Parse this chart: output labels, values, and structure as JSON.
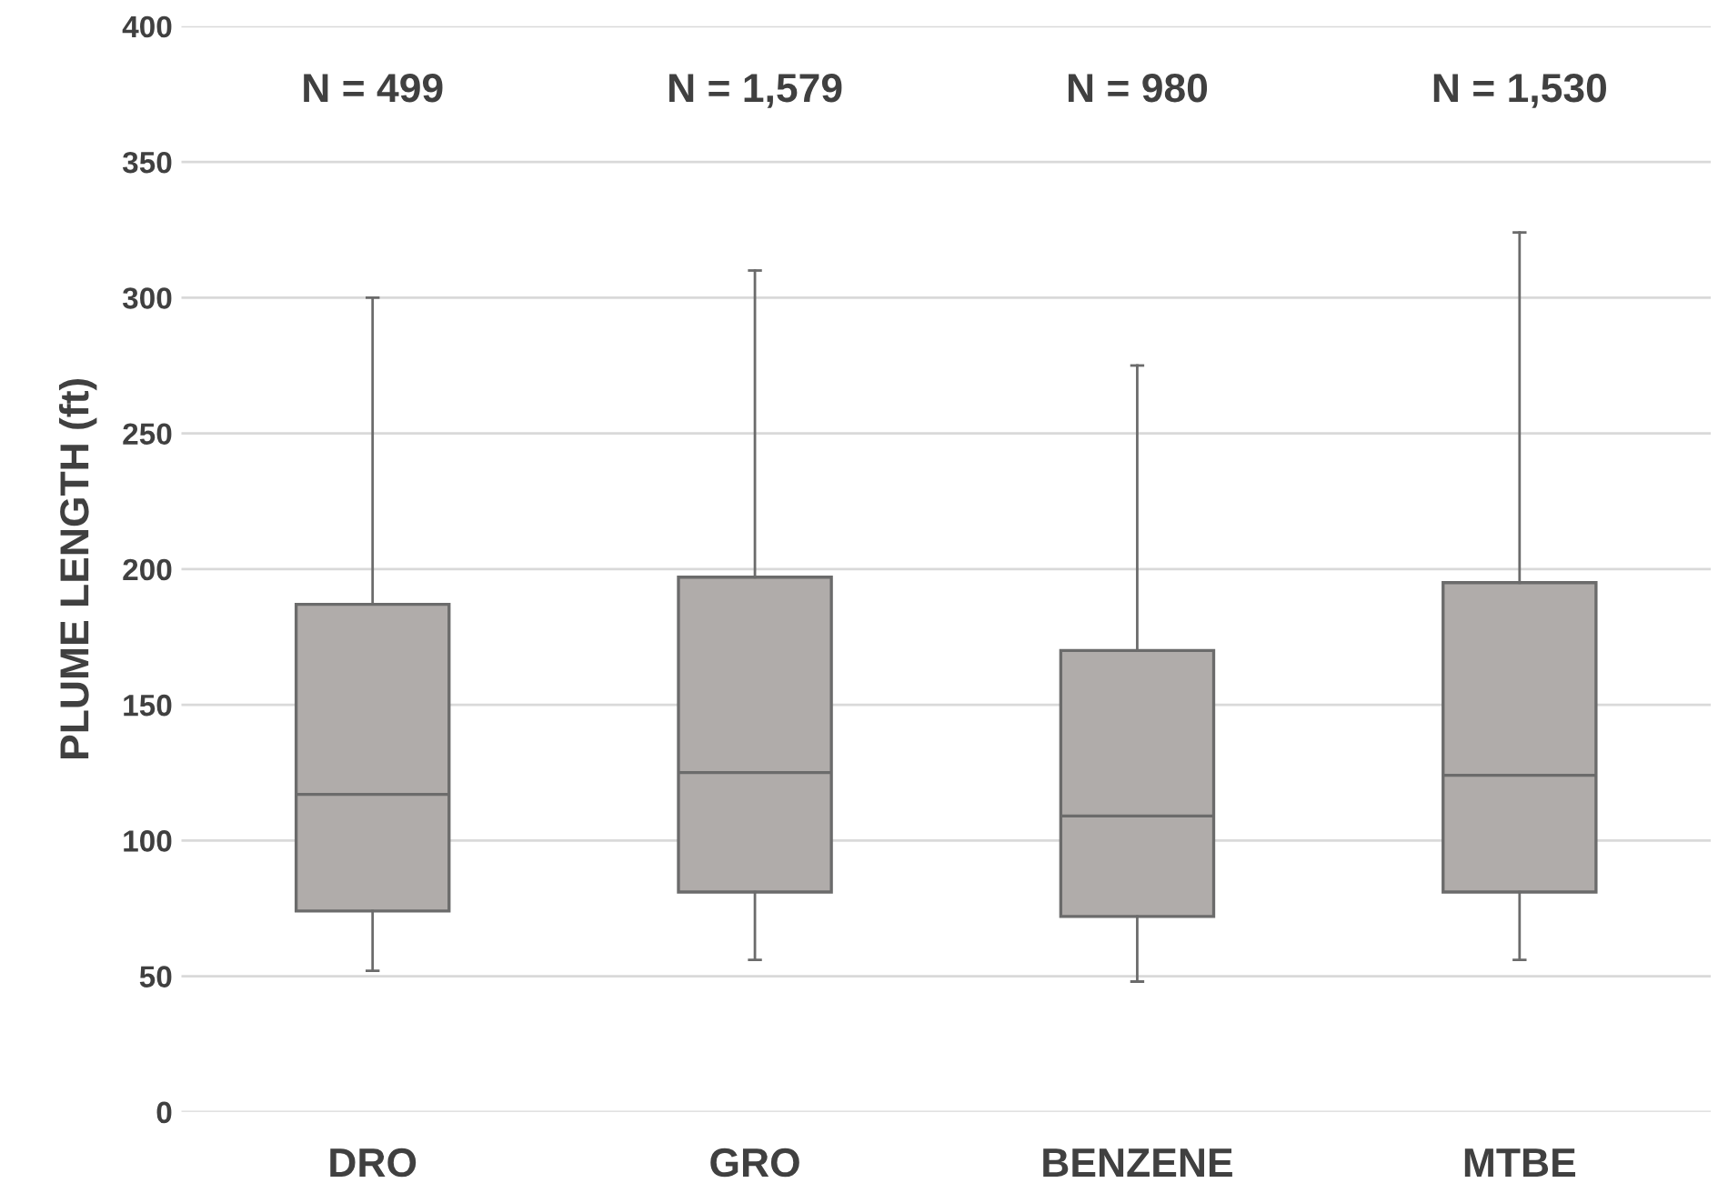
{
  "chart_data": {
    "type": "box",
    "ylabel": "PLUME LENGTH (ft)",
    "categories": [
      "DRO",
      "GRO",
      "BENZENE",
      "MTBE"
    ],
    "boxes": [
      {
        "low": 52,
        "q1": 74,
        "median": 117,
        "q3": 187,
        "high": 300
      },
      {
        "low": 56,
        "q1": 81,
        "median": 125,
        "q3": 197,
        "high": 310
      },
      {
        "low": 48,
        "q1": 72,
        "median": 109,
        "q3": 170,
        "high": 275
      },
      {
        "low": 56,
        "q1": 81,
        "median": 124,
        "q3": 195,
        "high": 324
      }
    ],
    "color": "#b0acaa",
    "ylim": [
      0,
      400
    ],
    "yticks": [
      0,
      50,
      100,
      150,
      200,
      250,
      300,
      350,
      400
    ],
    "grid": "y",
    "annotations": [
      "N = 499",
      "N = 1,579",
      "N = 980",
      "N = 1,530"
    ]
  }
}
